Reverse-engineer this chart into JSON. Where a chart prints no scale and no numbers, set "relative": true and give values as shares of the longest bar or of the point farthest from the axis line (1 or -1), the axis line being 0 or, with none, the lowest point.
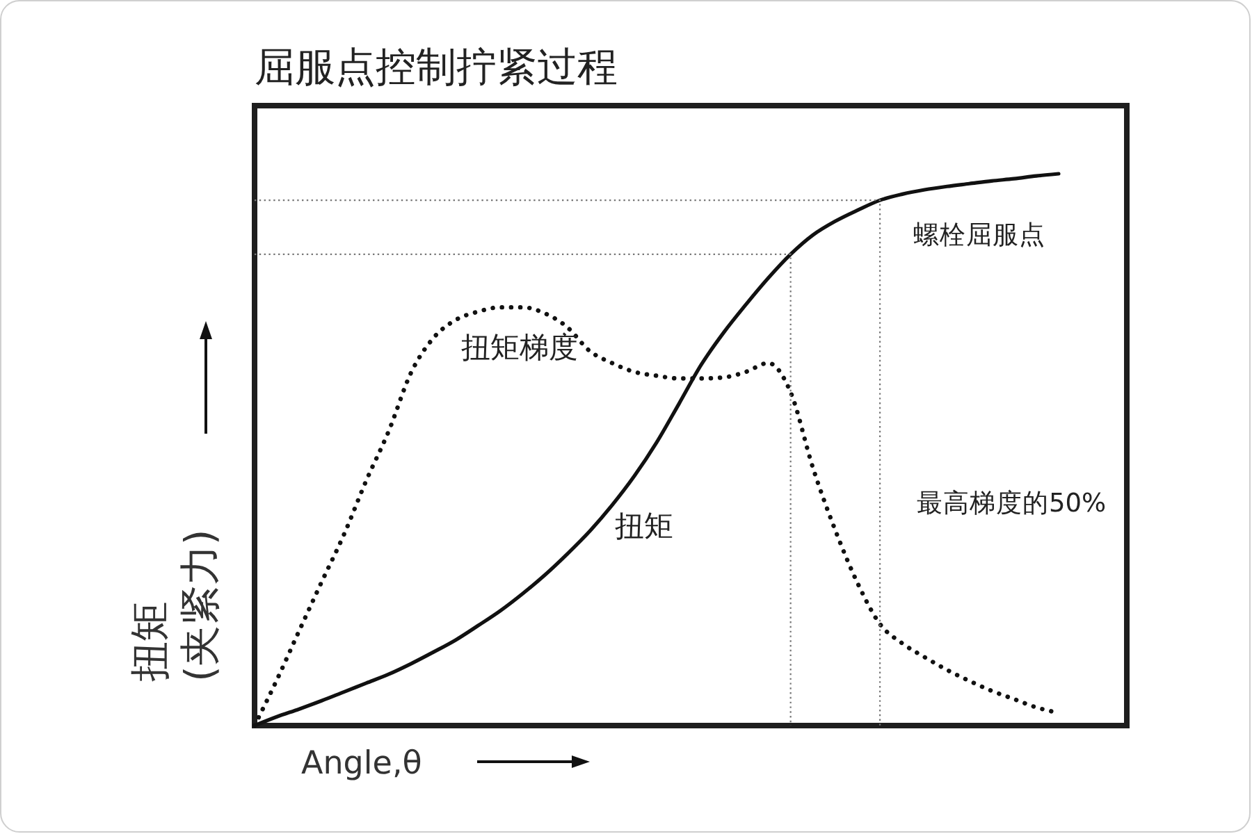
{
  "chart_data": {
    "type": "line",
    "title": "屈服点控制拧紧过程",
    "xlabel": "Angle,θ",
    "ylabel": "扭矩 (夹紧力)",
    "relative": true,
    "tick_labels": false,
    "categories": [
      null,
      null,
      null,
      null,
      null,
      null,
      null,
      null,
      null,
      null,
      null,
      null,
      null,
      null,
      null,
      null,
      null,
      null,
      null,
      null,
      null,
      null,
      null,
      null,
      null,
      null,
      null,
      null,
      null,
      null,
      null,
      null,
      null,
      null,
      null,
      null,
      null
    ],
    "series": [
      {
        "name": "扭矩",
        "color": "#111111",
        "line_style": "solid",
        "values": [
          0,
          0.016,
          0.03,
          0.045,
          0.061,
          0.077,
          0.093,
          0.112,
          0.133,
          0.155,
          0.181,
          0.208,
          0.239,
          0.273,
          0.311,
          0.352,
          0.399,
          0.452,
          0.513,
          0.583,
          0.654,
          0.712,
          0.763,
          0.811,
          0.854,
          0.889,
          0.914,
          0.934,
          0.952,
          0.963,
          0.971,
          0.977,
          0.982,
          0.987,
          0.991,
          0.996,
          1
        ]
      },
      {
        "name": "扭矩梯度",
        "color": "#111111",
        "line_style": "dotted",
        "values": [
          0,
          0.083,
          0.172,
          0.26,
          0.346,
          0.444,
          0.533,
          0.639,
          0.702,
          0.735,
          0.75,
          0.758,
          0.758,
          0.747,
          0.722,
          0.679,
          0.657,
          0.641,
          0.634,
          0.629,
          0.629,
          0.631,
          0.641,
          0.657,
          0.604,
          0.467,
          0.354,
          0.258,
          0.184,
          0.149,
          0.124,
          0.101,
          0.081,
          0.063,
          0.048,
          0.033,
          0.023
        ]
      }
    ],
    "ref_lines": [
      {
        "axis": "y",
        "value": 0.854,
        "color": "#777777",
        "line_style": "dotted"
      },
      {
        "axis": "y",
        "value": 0.952,
        "color": "#777777",
        "line_style": "dotted"
      }
    ],
    "annotations": [
      "螺栓屈服点",
      "最高梯度的50%"
    ]
  }
}
